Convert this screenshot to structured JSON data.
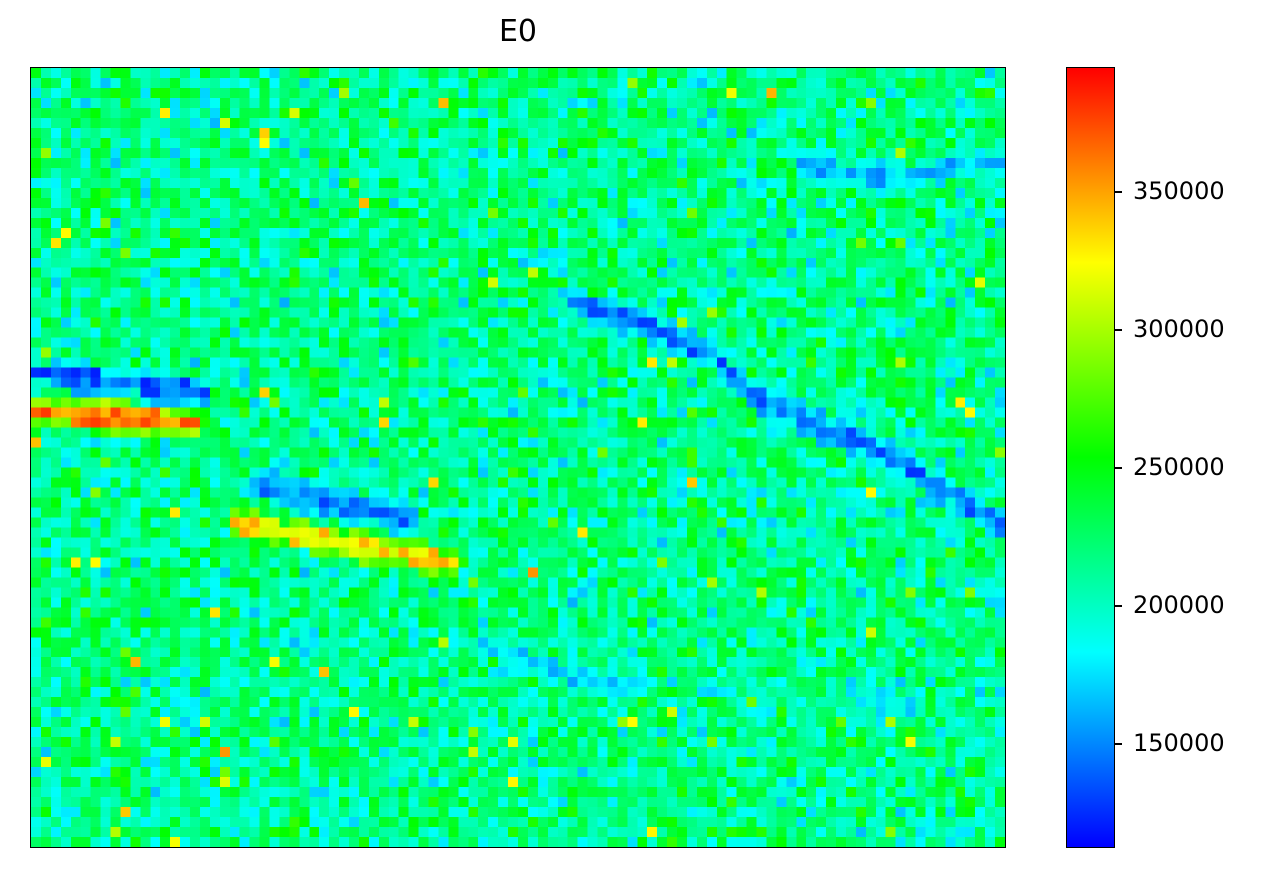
{
  "chart_data": {
    "type": "heatmap",
    "title": "E0",
    "xlabel": "",
    "ylabel": "",
    "grid_columns": 98,
    "grid_rows": 78,
    "colormap": "jet",
    "colormap_stops": [
      "#0000ff",
      "#0080ff",
      "#00ffff",
      "#00ff80",
      "#00ff00",
      "#80ff00",
      "#ffff00",
      "#ff8000",
      "#ff0000"
    ],
    "colorbar": {
      "min": 112000,
      "max": 395000,
      "ticks": [
        150000,
        200000,
        250000,
        300000,
        350000
      ],
      "tick_labels": [
        "150000",
        "200000",
        "250000",
        "300000",
        "350000"
      ]
    },
    "background_value": 215000,
    "noise_amplitude": 55000,
    "low_value_bands": [
      {
        "value": 140000,
        "points": [
          [
            0,
            30
          ],
          [
            17,
            32
          ]
        ]
      },
      {
        "value": 150000,
        "points": [
          [
            22,
            41
          ],
          [
            30,
            43
          ],
          [
            38,
            45
          ]
        ]
      },
      {
        "value": 145000,
        "points": [
          [
            54,
            23
          ],
          [
            60,
            25
          ],
          [
            68,
            28
          ],
          [
            72,
            32
          ],
          [
            78,
            35
          ],
          [
            85,
            38
          ],
          [
            92,
            42
          ],
          [
            98,
            46
          ]
        ]
      },
      {
        "value": 165000,
        "points": [
          [
            77,
            9
          ],
          [
            87,
            11
          ],
          [
            93,
            9
          ],
          [
            98,
            9
          ]
        ]
      },
      {
        "value": 175000,
        "points": [
          [
            45,
            57
          ],
          [
            53,
            60
          ],
          [
            60,
            62
          ]
        ]
      },
      {
        "value": 180000,
        "points": [
          [
            82,
            62
          ],
          [
            88,
            64
          ]
        ]
      }
    ],
    "high_value_bands": [
      {
        "value": 360000,
        "points": [
          [
            0,
            34
          ],
          [
            16,
            35
          ]
        ]
      },
      {
        "value": 330000,
        "points": [
          [
            20,
            45
          ],
          [
            30,
            47
          ],
          [
            42,
            49
          ]
        ]
      }
    ]
  }
}
